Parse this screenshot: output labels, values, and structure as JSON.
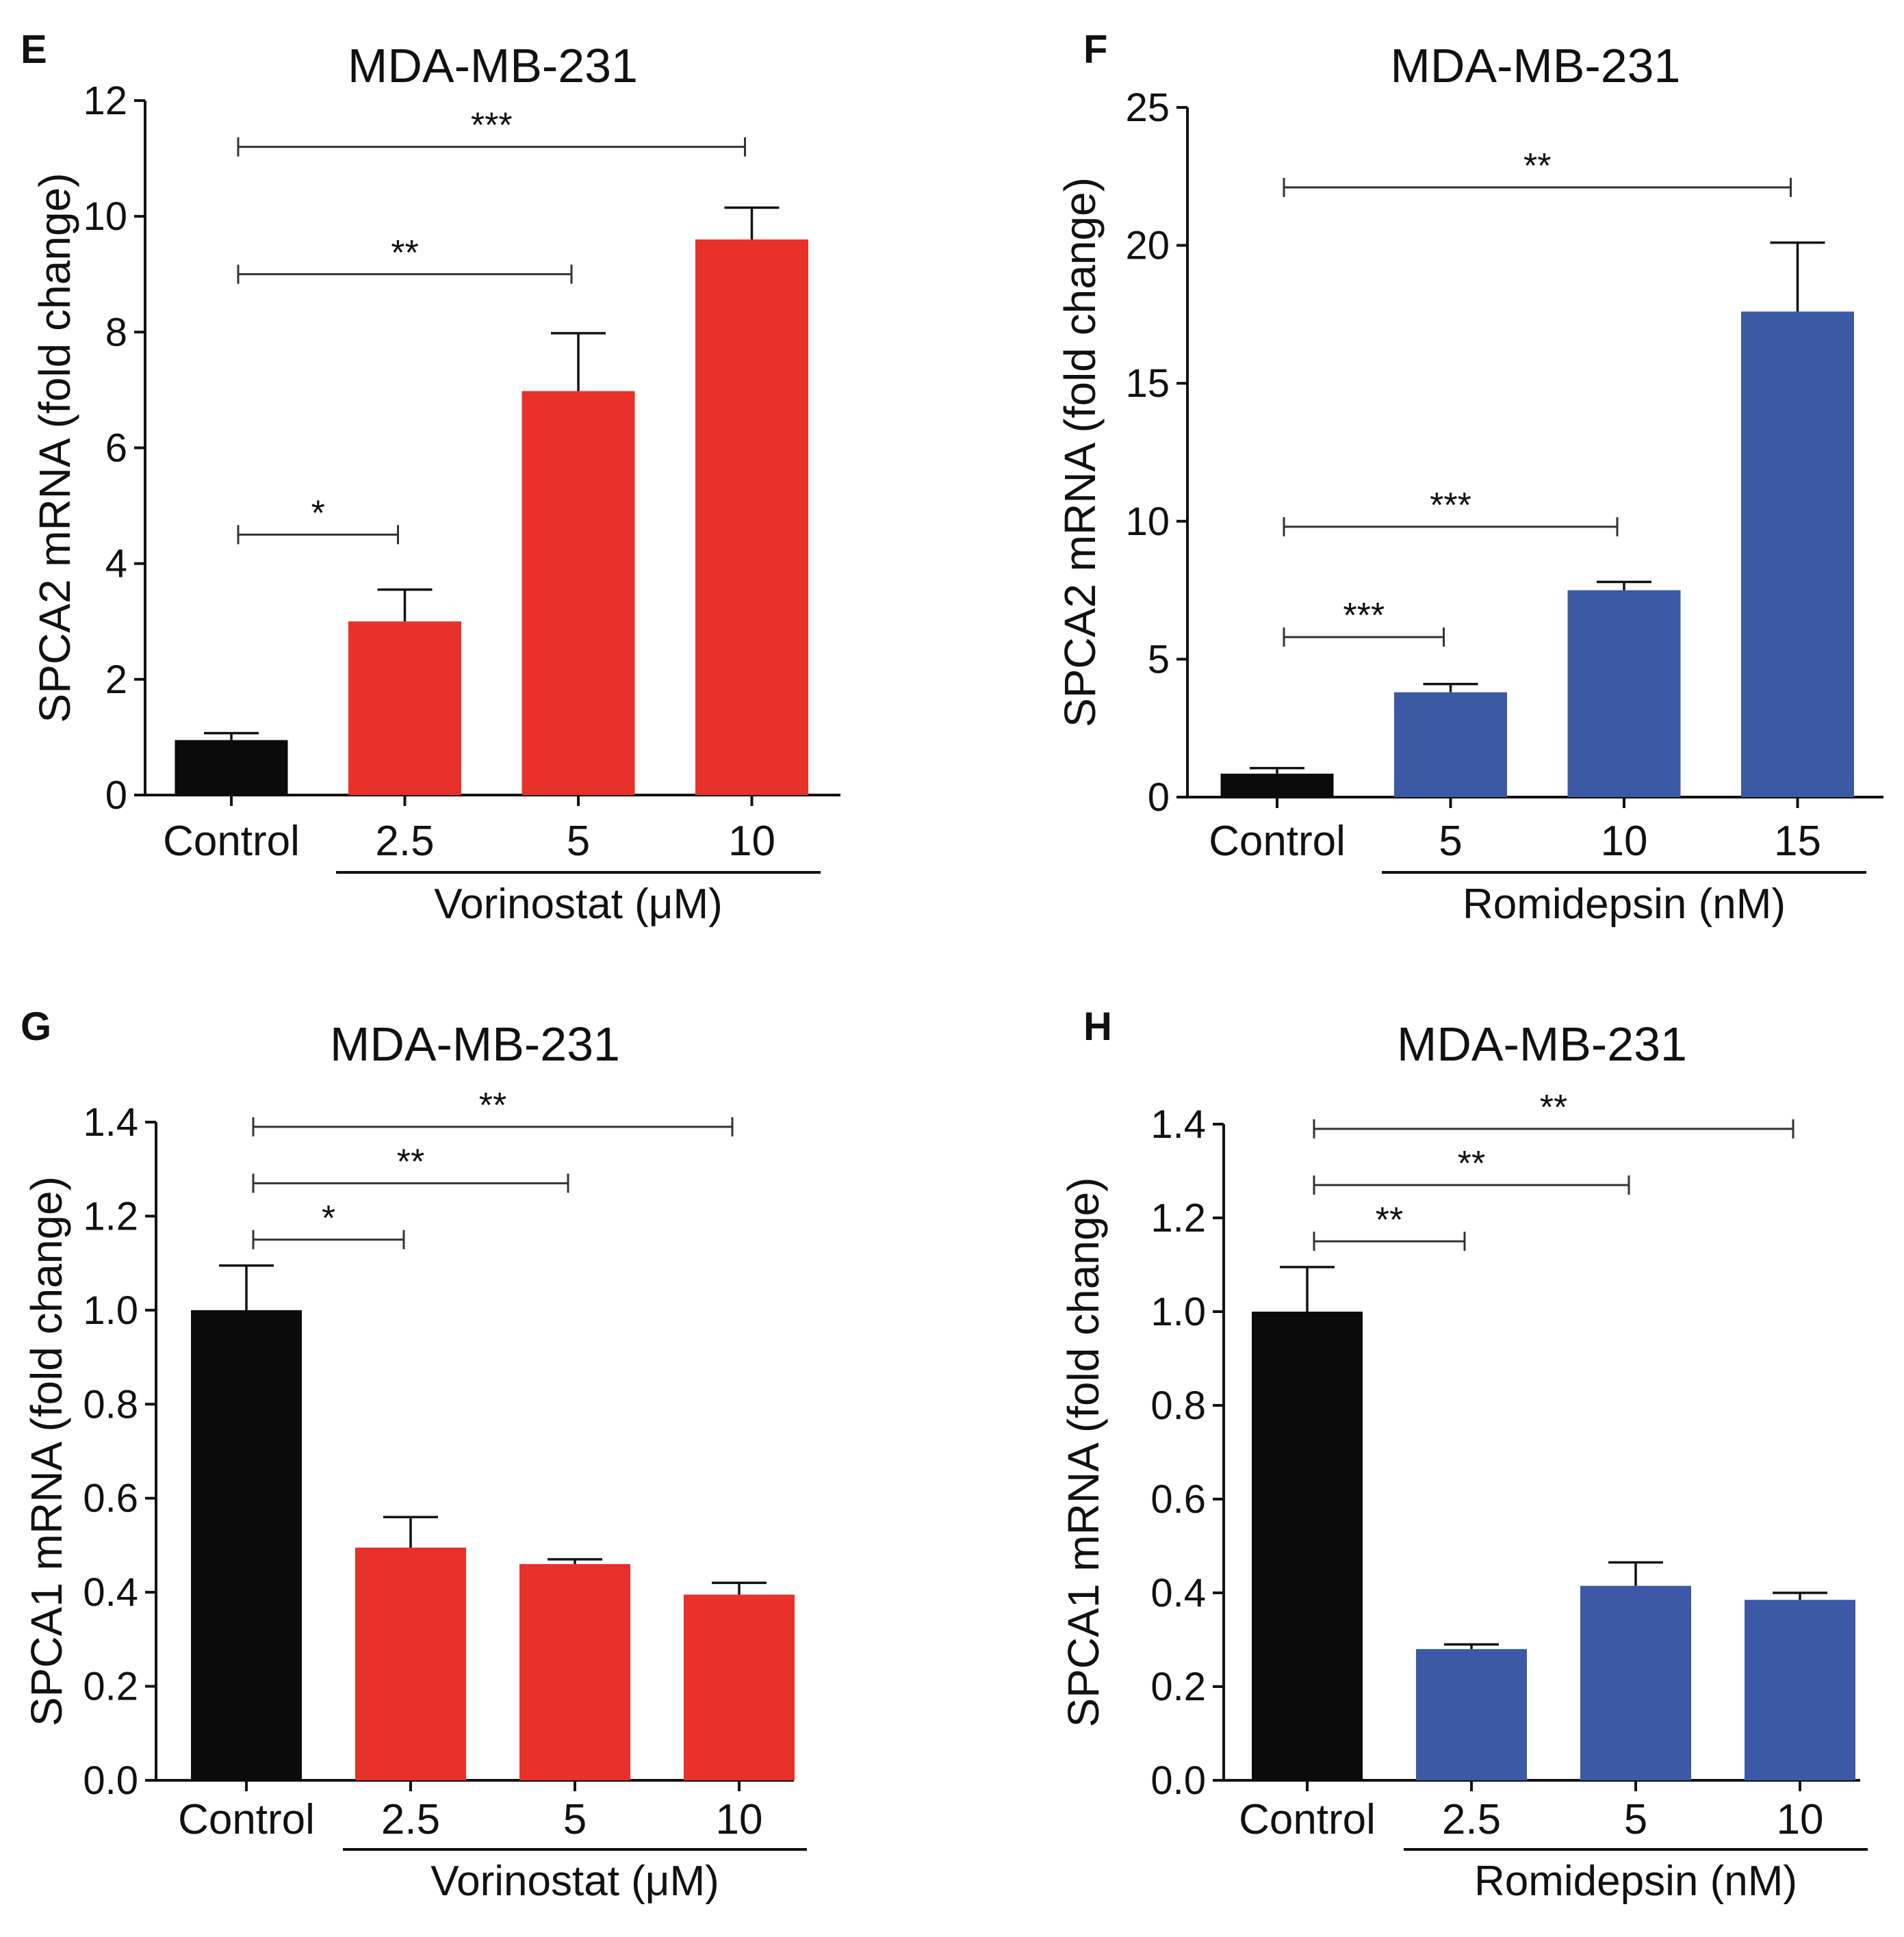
{
  "chart_data": [
    {
      "type": "bar",
      "panel": "E",
      "title": "MDA-MB-231",
      "ylabel": "SPCA2 mRNA (fold change)",
      "xlabel": "Vorinostat (μM)",
      "categories": [
        "Control",
        "2.5",
        "5",
        "10"
      ],
      "values": [
        0.95,
        3.0,
        6.98,
        9.6
      ],
      "errors": [
        0.12,
        0.55,
        1.0,
        0.55
      ],
      "colors": [
        "#0b0b0b",
        "#e8312a",
        "#e8312a",
        "#e8312a"
      ],
      "ylim": [
        0,
        12
      ],
      "yticks": [
        "0",
        "2",
        "4",
        "6",
        "8",
        "10",
        "12"
      ],
      "comparisons": [
        {
          "from": 0,
          "to": 1,
          "y": 4.5,
          "label": "*"
        },
        {
          "from": 0,
          "to": 2,
          "y": 9.0,
          "label": "**"
        },
        {
          "from": 0,
          "to": 3,
          "y": 11.2,
          "label": "***"
        }
      ]
    },
    {
      "type": "bar",
      "panel": "F",
      "title": "MDA-MB-231",
      "ylabel": "SPCA2 mRNA (fold change)",
      "xlabel": "Romidepsin (nM)",
      "categories": [
        "Control",
        "5",
        "10",
        "15"
      ],
      "values": [
        0.85,
        3.8,
        7.5,
        17.6
      ],
      "errors": [
        0.2,
        0.3,
        0.3,
        2.5
      ],
      "colors": [
        "#0b0b0b",
        "#3c59a6",
        "#3c59a6",
        "#3c59a6"
      ],
      "ylim": [
        0,
        25
      ],
      "yticks": [
        "0",
        "5",
        "10",
        "15",
        "20",
        "25"
      ],
      "comparisons": [
        {
          "from": 0,
          "to": 1,
          "y": 5.8,
          "label": "***"
        },
        {
          "from": 0,
          "to": 2,
          "y": 9.8,
          "label": "***"
        },
        {
          "from": 0,
          "to": 3,
          "y": 22.1,
          "label": "**"
        }
      ]
    },
    {
      "type": "bar",
      "panel": "G",
      "title": "MDA-MB-231",
      "ylabel": "SPCA1 mRNA (fold change)",
      "xlabel": "Vorinostat (μM)",
      "categories": [
        "Control",
        "2.5",
        "5",
        "10"
      ],
      "values": [
        1.0,
        0.495,
        0.46,
        0.395
      ],
      "errors": [
        0.095,
        0.065,
        0.01,
        0.025
      ],
      "colors": [
        "#0b0b0b",
        "#e8312a",
        "#e8312a",
        "#e8312a"
      ],
      "ylim": [
        0,
        1.4
      ],
      "yticks": [
        "0.0",
        "0.2",
        "0.4",
        "0.6",
        "0.8",
        "1.0",
        "1.2",
        "1.4"
      ],
      "comparisons": [
        {
          "from": 0,
          "to": 1,
          "y": 1.15,
          "label": "*"
        },
        {
          "from": 0,
          "to": 2,
          "y": 1.27,
          "label": "**"
        },
        {
          "from": 0,
          "to": 3,
          "y": 1.39,
          "label": "**"
        }
      ]
    },
    {
      "type": "bar",
      "panel": "H",
      "title": "MDA-MB-231",
      "ylabel": "SPCA1 mRNA (fold change)",
      "xlabel": "Romidepsin (nM)",
      "categories": [
        "Control",
        "2.5",
        "5",
        "10"
      ],
      "values": [
        1.0,
        0.28,
        0.415,
        0.385
      ],
      "errors": [
        0.095,
        0.01,
        0.05,
        0.015
      ],
      "colors": [
        "#0b0b0b",
        "#3c59a6",
        "#3c59a6",
        "#3c59a6"
      ],
      "ylim": [
        0,
        1.4
      ],
      "yticks": [
        "0.0",
        "0.2",
        "0.4",
        "0.6",
        "0.8",
        "1.0",
        "1.2",
        "1.4"
      ],
      "comparisons": [
        {
          "from": 0,
          "to": 1,
          "y": 1.15,
          "label": "**"
        },
        {
          "from": 0,
          "to": 2,
          "y": 1.27,
          "label": "**"
        },
        {
          "from": 0,
          "to": 3,
          "y": 1.39,
          "label": "**"
        }
      ]
    }
  ]
}
